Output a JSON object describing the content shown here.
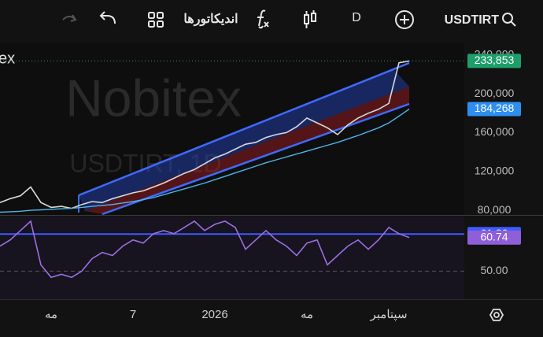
{
  "toolbar": {
    "symbol": "USDTIRT",
    "interval": "D",
    "indicators": "اندیکاتورها"
  },
  "watermark": {
    "brand": "Nobitex",
    "symbol": "USDTIRT, 1D"
  },
  "left_label": "ex",
  "chart_data": [
    {
      "type": "line",
      "categories": [
        null,
        null,
        null,
        null,
        null,
        "مه",
        null,
        null,
        null,
        null,
        null,
        null,
        null,
        "7",
        null,
        null,
        null,
        null,
        null,
        null,
        null,
        "2026",
        null,
        null,
        null,
        null,
        null,
        null,
        null,
        null,
        "مه",
        null,
        null,
        null,
        null,
        null,
        null,
        null,
        "سپتامبر",
        null,
        null
      ],
      "series": [
        {
          "color": "#d9d9d9",
          "values": [
            88000,
            92000,
            95000,
            104000,
            88000,
            83000,
            84000,
            82000,
            86000,
            89000,
            88000,
            92000,
            95000,
            98000,
            100000,
            104000,
            108000,
            113000,
            118000,
            122000,
            128000,
            134000,
            138000,
            143000,
            148000,
            150000,
            155000,
            158000,
            160000,
            166000,
            175000,
            170000,
            165000,
            158000,
            168000,
            175000,
            180000,
            184000,
            190000,
            232000,
            233853
          ]
        },
        {
          "color": "#4fb3e8",
          "values": [
            78000,
            78500,
            79000,
            80000,
            80500,
            81000,
            81500,
            82000,
            83000,
            84000,
            85000,
            86000,
            87500,
            89000,
            91000,
            93000,
            96000,
            99000,
            102000,
            105000,
            108000,
            111500,
            115000,
            118500,
            122000,
            125500,
            129000,
            132000,
            135000,
            138000,
            141000,
            144000,
            147000,
            150000,
            153500,
            157000,
            161000,
            165000,
            170000,
            177000,
            184268
          ]
        }
      ],
      "price_labels": [
        {
          "value": 233853,
          "label": "233,853",
          "color": "#1e9e6a"
        },
        {
          "value": 184268,
          "label": "184,268",
          "color": "#2f8ff0"
        }
      ],
      "ylim": [
        76000,
        252000
      ],
      "yticks": [
        {
          "value": 240000,
          "label": "240,000"
        },
        {
          "value": 200000,
          "label": "200,000"
        },
        {
          "value": 160000,
          "label": "160,000"
        },
        {
          "value": 120000,
          "label": "120,000"
        },
        {
          "value": 80000,
          "label": "80,000"
        }
      ]
    },
    {
      "type": "line",
      "series": [
        {
          "color": "#9b6fe0",
          "values": [
            58,
            60,
            63,
            66,
            52,
            48,
            49,
            48,
            50,
            54,
            56,
            55,
            58,
            60,
            59,
            62,
            63,
            62,
            64,
            66,
            63,
            65,
            66,
            64,
            57,
            60,
            63,
            60,
            58,
            55,
            59,
            60,
            52,
            55,
            58,
            60,
            57,
            60,
            64,
            62,
            60.74
          ]
        }
      ],
      "levels": [
        {
          "value": 61.89,
          "label": "61.89",
          "color": "#3d5afe"
        }
      ],
      "price_labels": [
        {
          "value": 60.74,
          "label": "60.74",
          "color": "#8e5fd8"
        }
      ],
      "ylim": [
        41,
        67.5
      ],
      "yticks": [
        {
          "value": 50,
          "label": "50.00"
        }
      ],
      "grid": true
    }
  ]
}
